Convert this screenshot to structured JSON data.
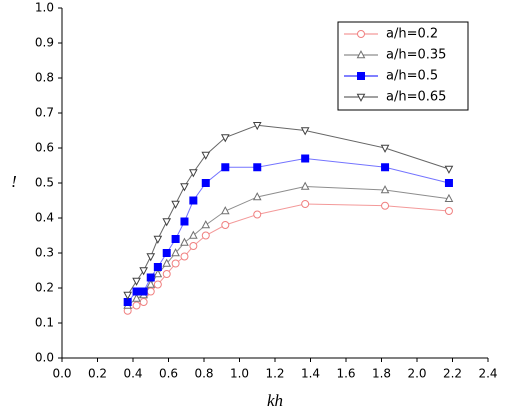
{
  "chart_data": {
    "type": "line",
    "x_label": "kh",
    "y_label": "!",
    "x": [
      0.37,
      0.42,
      0.46,
      0.5,
      0.54,
      0.59,
      0.64,
      0.69,
      0.74,
      0.81,
      0.92,
      1.1,
      1.37,
      1.82,
      2.18
    ],
    "series": [
      {
        "name": "a/h=0.2",
        "color": "#f08080",
        "marker": "circle",
        "values": [
          0.135,
          0.15,
          0.16,
          0.19,
          0.21,
          0.24,
          0.27,
          0.29,
          0.32,
          0.35,
          0.38,
          0.41,
          0.44,
          0.435,
          0.42
        ]
      },
      {
        "name": "a/h=0.35",
        "color": "#707070",
        "marker": "triangle-up",
        "values": [
          0.15,
          0.17,
          0.18,
          0.21,
          0.24,
          0.27,
          0.3,
          0.33,
          0.35,
          0.38,
          0.42,
          0.46,
          0.49,
          0.48,
          0.455
        ]
      },
      {
        "name": "a/h=0.5",
        "color": "#0000ff",
        "marker": "square",
        "values": [
          0.16,
          0.19,
          0.19,
          0.23,
          0.26,
          0.3,
          0.34,
          0.39,
          0.45,
          0.5,
          0.545,
          0.545,
          0.57,
          0.545,
          0.5
        ]
      },
      {
        "name": "a/h=0.65",
        "color": "#404040",
        "marker": "triangle-down",
        "values": [
          0.18,
          0.22,
          0.25,
          0.29,
          0.34,
          0.39,
          0.44,
          0.49,
          0.53,
          0.58,
          0.63,
          0.665,
          0.65,
          0.6,
          0.54
        ]
      }
    ],
    "xlim": [
      0,
      2.4
    ],
    "xticks": [
      {
        "value": 0,
        "label": "0.0"
      },
      {
        "value": 0.2,
        "label": "0.2"
      },
      {
        "value": 0.4,
        "label": "0.4"
      },
      {
        "value": 0.6,
        "label": "0.6"
      },
      {
        "value": 0.8,
        "label": "0.8"
      },
      {
        "value": 1,
        "label": "1.0"
      },
      {
        "value": 1.2,
        "label": "1.2"
      },
      {
        "value": 1.4,
        "label": "1.4"
      },
      {
        "value": 1.6,
        "label": "1.6"
      },
      {
        "value": 1.8,
        "label": "1.8"
      },
      {
        "value": 2,
        "label": "2.0"
      },
      {
        "value": 2.2,
        "label": "2.2"
      },
      {
        "value": 2.4,
        "label": "2.4"
      }
    ],
    "ylim": [
      0,
      1
    ],
    "yticks": [
      {
        "value": 0,
        "label": "0.0"
      },
      {
        "value": 0.1,
        "label": "0.1"
      },
      {
        "value": 0.2,
        "label": "0.2"
      },
      {
        "value": 0.3,
        "label": "0.3"
      },
      {
        "value": 0.4,
        "label": "0.4"
      },
      {
        "value": 0.5,
        "label": "0.5"
      },
      {
        "value": 0.6,
        "label": "0.6"
      },
      {
        "value": 0.7,
        "label": "0.7"
      },
      {
        "value": 0.8,
        "label": "0.8"
      },
      {
        "value": 0.9,
        "label": "0.9"
      },
      {
        "value": 1,
        "label": "1.0"
      }
    ],
    "grid": false,
    "legend": "upper right"
  }
}
